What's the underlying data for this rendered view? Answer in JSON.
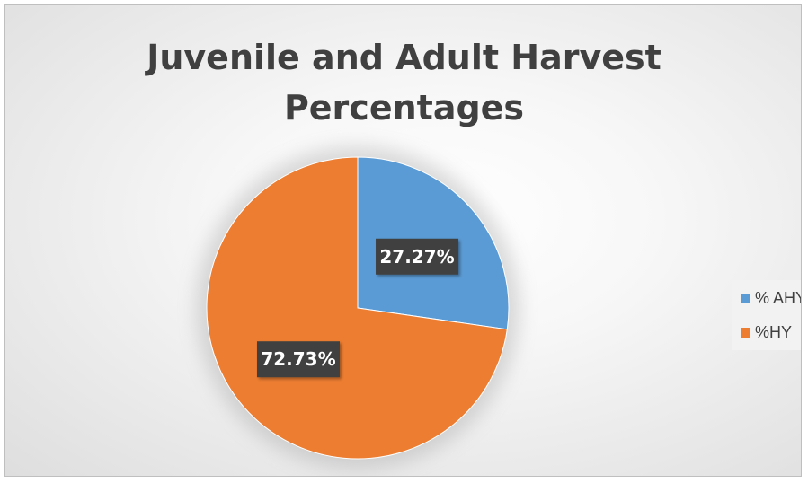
{
  "chart_data": {
    "type": "pie",
    "title": "Juvenile and Adult Harvest\nPercentages",
    "series": [
      {
        "values": [
          27.27,
          72.73
        ],
        "labels": [
          "27.27%",
          "72.73%"
        ]
      }
    ],
    "categories": [
      "% AHY",
      "%HY"
    ],
    "colors": [
      "#5b9bd5",
      "#ed7d31"
    ],
    "data_label_style": {
      "background": "#404040",
      "text_color": "#ffffff"
    },
    "legend": {
      "placement": "right",
      "entries": [
        "% AHY",
        "%HY"
      ]
    }
  }
}
